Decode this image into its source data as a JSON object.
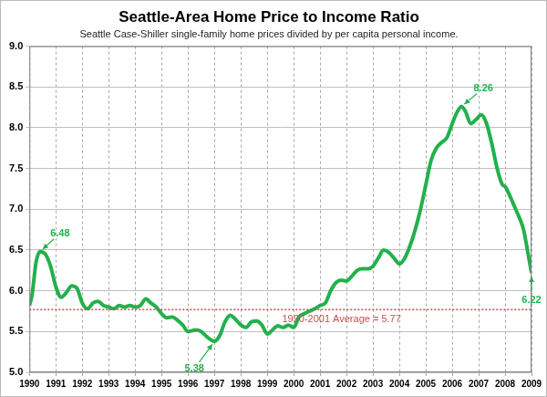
{
  "chart_data": {
    "type": "line",
    "title": "Seattle-Area Home Price to Income Ratio",
    "subtitle": "Seattle Case-Shiller single-family home prices divided by per capita personal income.",
    "color": "#22b14c",
    "grid": true,
    "xlim": [
      1990,
      2009
    ],
    "xticks": [
      1990,
      1991,
      1992,
      1993,
      1994,
      1995,
      1996,
      1997,
      1998,
      1999,
      2000,
      2001,
      2002,
      2003,
      2004,
      2005,
      2006,
      2007,
      2008,
      2009
    ],
    "ylim": [
      5,
      9
    ],
    "yticks": [
      {
        "value": 5,
        "label": "5.0"
      },
      5.5,
      {
        "value": 6,
        "label": "6.0"
      },
      6.5,
      {
        "value": 7,
        "label": "7.0"
      },
      7.5,
      {
        "value": 8,
        "label": "8.0"
      },
      8.5,
      {
        "value": 9,
        "label": "9.0"
      }
    ],
    "x": [
      1990.0,
      1990.1,
      1990.25,
      1990.4,
      1990.6,
      1990.8,
      1991.0,
      1991.2,
      1991.4,
      1991.6,
      1991.8,
      1992.0,
      1992.2,
      1992.4,
      1992.6,
      1992.8,
      1993.0,
      1993.2,
      1993.4,
      1993.6,
      1993.8,
      1994.0,
      1994.2,
      1994.4,
      1994.6,
      1994.8,
      1995.0,
      1995.2,
      1995.4,
      1995.6,
      1995.8,
      1996.0,
      1996.3,
      1996.5,
      1996.7,
      1997.0,
      1997.2,
      1997.4,
      1997.6,
      1997.8,
      1998.0,
      1998.2,
      1998.4,
      1998.6,
      1998.8,
      1999.0,
      1999.2,
      1999.4,
      1999.6,
      1999.8,
      2000.0,
      2000.2,
      2000.4,
      2000.6,
      2000.8,
      2001.0,
      2001.2,
      2001.4,
      2001.6,
      2001.8,
      2002.0,
      2002.2,
      2002.4,
      2002.6,
      2002.8,
      2003.0,
      2003.2,
      2003.4,
      2003.6,
      2003.8,
      2004.0,
      2004.2,
      2004.4,
      2004.6,
      2004.8,
      2005.0,
      2005.2,
      2005.4,
      2005.6,
      2005.8,
      2006.0,
      2006.2,
      2006.35,
      2006.5,
      2006.7,
      2006.9,
      2007.1,
      2007.3,
      2007.5,
      2007.7,
      2007.9,
      2008.0,
      2008.2,
      2008.4,
      2008.6,
      2008.7,
      2008.9,
      2009.0
    ],
    "values": [
      5.82,
      5.95,
      6.35,
      6.48,
      6.45,
      6.3,
      6.05,
      5.92,
      5.98,
      6.06,
      6.03,
      5.85,
      5.78,
      5.85,
      5.87,
      5.82,
      5.8,
      5.78,
      5.82,
      5.8,
      5.82,
      5.8,
      5.82,
      5.9,
      5.85,
      5.8,
      5.72,
      5.67,
      5.68,
      5.64,
      5.58,
      5.5,
      5.52,
      5.5,
      5.44,
      5.38,
      5.45,
      5.62,
      5.7,
      5.65,
      5.58,
      5.55,
      5.62,
      5.63,
      5.58,
      5.47,
      5.52,
      5.57,
      5.55,
      5.58,
      5.55,
      5.68,
      5.72,
      5.75,
      5.78,
      5.82,
      5.85,
      6.0,
      6.1,
      6.13,
      6.12,
      6.18,
      6.25,
      6.27,
      6.27,
      6.3,
      6.4,
      6.5,
      6.47,
      6.4,
      6.33,
      6.4,
      6.55,
      6.75,
      7.0,
      7.3,
      7.6,
      7.75,
      7.82,
      7.88,
      8.05,
      8.2,
      8.26,
      8.2,
      8.05,
      8.1,
      8.16,
      8.05,
      7.8,
      7.5,
      7.3,
      7.28,
      7.15,
      7.0,
      6.85,
      6.75,
      6.4,
      6.22
    ],
    "annotations": [
      {
        "label": "6.48",
        "x": 1990.4,
        "y": 6.48
      },
      {
        "label": "5.38",
        "x": 1997.0,
        "y": 5.38
      },
      {
        "label": "8.26",
        "x": 2006.35,
        "y": 8.26
      },
      {
        "label": "6.22",
        "x": 2009.0,
        "y": 6.22
      }
    ],
    "reference_line": {
      "label": "1990-2001 Average = 5.77",
      "value": 5.77,
      "color": "#c0504d"
    }
  }
}
